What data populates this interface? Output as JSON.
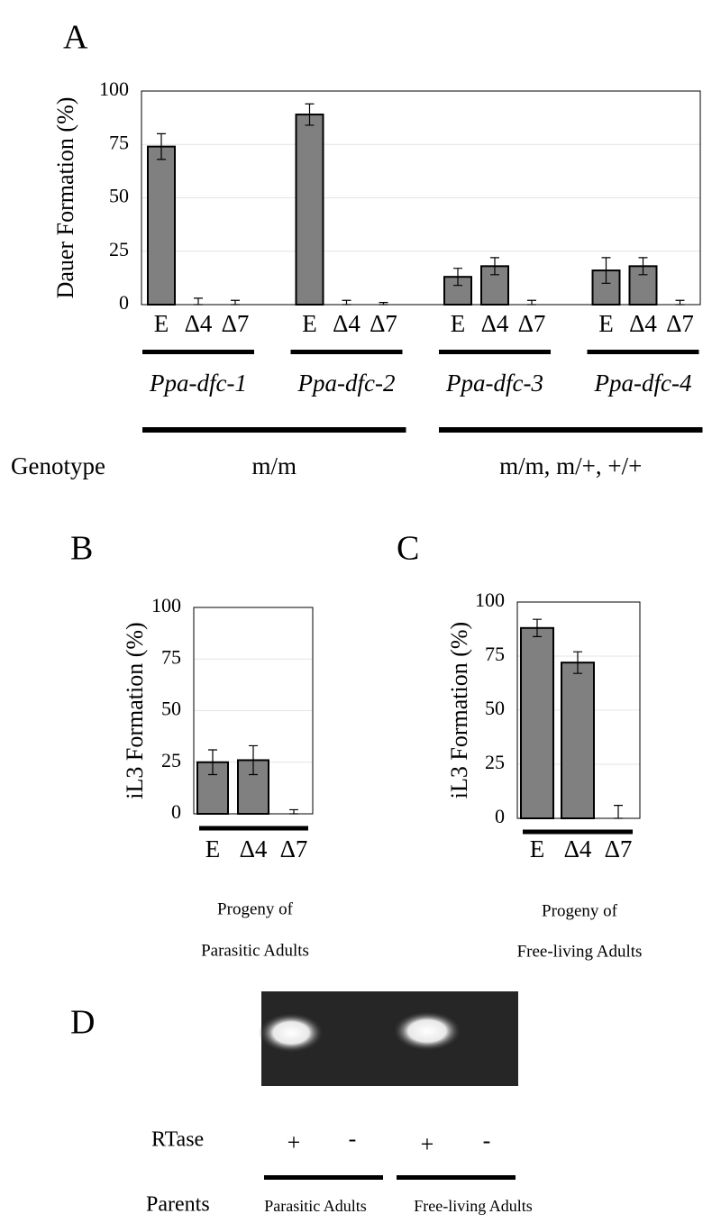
{
  "chart_data": [
    {
      "type": "bar",
      "panel": "A",
      "ylabel": "Dauer Formation (%)",
      "categories": [
        "E",
        "Δ4",
        "Δ7",
        "E",
        "Δ4",
        "Δ7",
        "E",
        "Δ4",
        "Δ7",
        "E",
        "Δ4",
        "Δ7"
      ],
      "values": [
        74,
        0,
        0,
        89,
        0,
        0,
        13,
        18,
        0,
        16,
        18,
        0
      ],
      "errors": [
        6,
        3,
        2,
        5,
        2,
        1,
        4,
        4,
        2,
        6,
        4,
        2
      ],
      "color": "#808080",
      "ylim": [
        0,
        100
      ],
      "yticks": [
        0,
        25,
        50,
        75,
        100
      ],
      "grid": true,
      "groups": [
        "Ppa-dfc-1",
        "Ppa-dfc-2",
        "Ppa-dfc-3",
        "Ppa-dfc-4"
      ],
      "genotype_label": "Genotype",
      "genotypes": [
        "m/m",
        "m/m, m/+, +/+"
      ]
    },
    {
      "type": "bar",
      "panel": "B",
      "ylabel": "iL3 Formation (%)",
      "categories": [
        "E",
        "Δ4",
        "Δ7"
      ],
      "values": [
        25,
        26,
        0
      ],
      "errors": [
        6,
        7,
        2
      ],
      "color": "#808080",
      "ylim": [
        0,
        100
      ],
      "yticks": [
        0,
        25,
        50,
        75,
        100
      ],
      "grid": true,
      "group_label": [
        "Progeny of",
        "Parasitic Adults"
      ]
    },
    {
      "type": "bar",
      "panel": "C",
      "ylabel": "iL3 Formation (%)",
      "categories": [
        "E",
        "Δ4",
        "Δ7"
      ],
      "values": [
        88,
        72,
        0
      ],
      "errors": [
        4,
        5,
        6
      ],
      "color": "#808080",
      "ylim": [
        0,
        100
      ],
      "yticks": [
        0,
        25,
        50,
        75,
        100
      ],
      "grid": true,
      "group_label": [
        "Progeny of",
        "Free-living Adults"
      ]
    }
  ],
  "panel_d": {
    "panel": "D",
    "rtase": {
      "label": "RTase",
      "items": [
        "+",
        "-",
        "+",
        "-"
      ]
    },
    "parents": {
      "label": "Parents",
      "items": [
        "Parasitic Adults",
        "Free-living Adults"
      ]
    }
  }
}
